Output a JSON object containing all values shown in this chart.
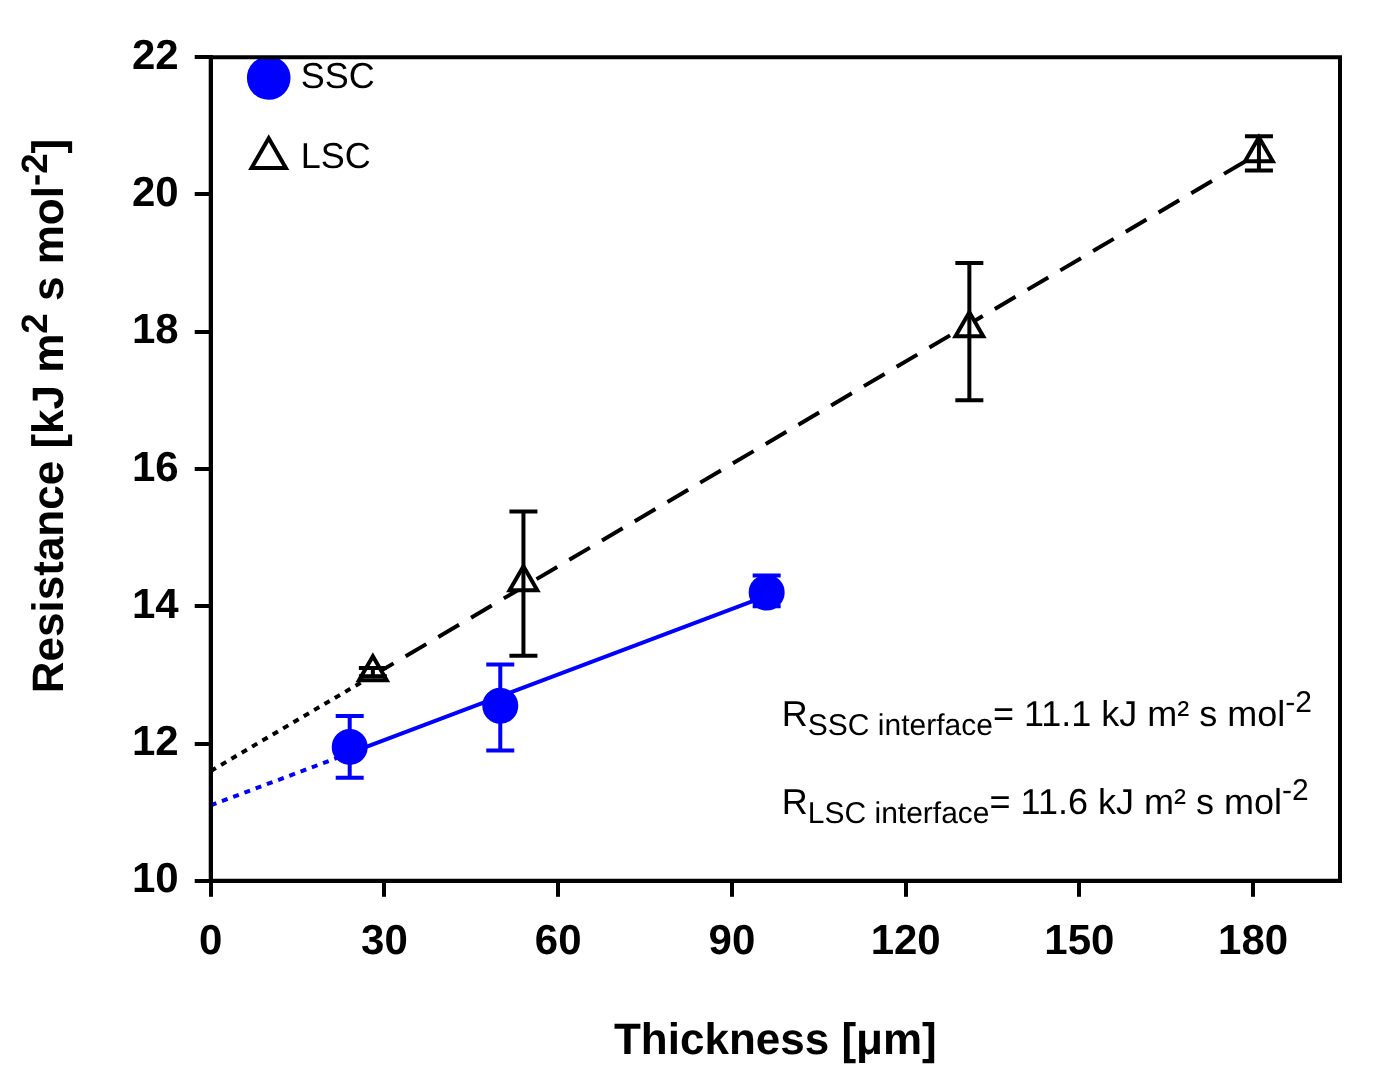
{
  "chart_data": {
    "type": "scatter",
    "xlabel": "Thickness [μm]",
    "ylabel": "Resistance [kJ m$^{2}$ s mol$^{-2}$]",
    "xlim": [
      0,
      195
    ],
    "xticks": [
      0,
      30,
      60,
      90,
      120,
      150,
      180
    ],
    "ylim": [
      10,
      22
    ],
    "yticks": [
      10,
      12,
      14,
      16,
      18,
      20,
      22
    ],
    "legend": "top left",
    "grid": false,
    "annotations": [
      "R$_{SSC interface}$= 11.1 kJ m² s mol$^{-2}$",
      "R$_{LSC interface}$= 11.6 kJ m² s mol$^{-2}$"
    ],
    "series": [
      {
        "name": "SSC",
        "color": "#0000ff",
        "marker": "circle",
        "x": [
          24,
          50,
          96
        ],
        "values": [
          11.95,
          12.55,
          14.2
        ],
        "errors": [
          [
            11.5,
            12.4
          ],
          [
            11.9,
            13.15
          ],
          [
            14.0,
            14.45
          ]
        ]
      },
      {
        "name": "LSC",
        "color": "#000000",
        "marker": "triangle",
        "x": [
          28,
          54,
          131,
          181
        ],
        "values": [
          13.04,
          14.35,
          18.05,
          20.6
        ],
        "errors": [
          [
            12.98,
            13.1
          ],
          [
            13.28,
            15.38
          ],
          [
            17.0,
            19.0
          ],
          [
            20.35,
            20.85
          ]
        ]
      },
      {
        "type": "line",
        "color": "#0000ff",
        "line_style": "solid",
        "x": [
          24,
          96
        ],
        "values": [
          11.86,
          14.15
        ]
      },
      {
        "type": "line",
        "color": "#0000ff",
        "line_style": "dotted",
        "x": [
          0,
          24
        ],
        "values": [
          11.1,
          11.86
        ]
      },
      {
        "type": "line",
        "color": "#000000",
        "line_style": "dashed",
        "x": [
          28,
          181
        ],
        "values": [
          12.99,
          20.6
        ]
      },
      {
        "type": "line",
        "color": "#000000",
        "line_style": "dotted",
        "x": [
          0,
          28
        ],
        "values": [
          11.6,
          12.99
        ]
      }
    ]
  }
}
